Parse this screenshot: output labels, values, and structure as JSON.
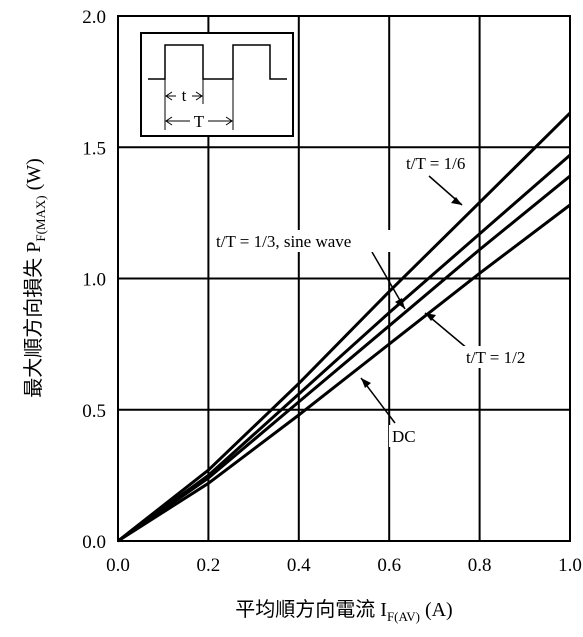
{
  "chart_data": {
    "type": "line",
    "xlabel": "平均順方向電流 I",
    "xlabel_sub": "F(AV)",
    "xlabel_unit": "(A)",
    "ylabel": "最大順方向損失 P",
    "ylabel_sub": "F(MAX)",
    "ylabel_unit": "(W)",
    "xlim": [
      0.0,
      1.0
    ],
    "ylim": [
      0.0,
      2.0
    ],
    "x_ticks": [
      "0.0",
      "0.2",
      "0.4",
      "0.6",
      "0.8",
      "1.0"
    ],
    "y_ticks": [
      "0.0",
      "0.5",
      "1.0",
      "1.5",
      "2.0"
    ],
    "grid": true,
    "x": [
      0.0,
      0.2,
      0.4,
      0.6,
      0.8,
      1.0
    ],
    "series": [
      {
        "values": [
          0.0,
          0.27,
          0.6,
          0.95,
          1.29,
          1.63
        ]
      },
      {
        "values": [
          0.0,
          0.25,
          0.56,
          0.87,
          1.17,
          1.47
        ]
      },
      {
        "values": [
          0.0,
          0.24,
          0.53,
          0.82,
          1.11,
          1.39
        ]
      },
      {
        "values": [
          0.0,
          0.22,
          0.48,
          0.75,
          1.02,
          1.28
        ]
      }
    ],
    "annotations": [
      {
        "text": "t/T = 1/6",
        "target_x": 0.66,
        "target_y": 1.15
      },
      {
        "text": "t/T = 1/3, sine wave",
        "target_x": 0.64,
        "target_y": 0.86
      },
      {
        "text": "t/T = 1/2",
        "target_x": 0.69,
        "target_y": 0.88
      },
      {
        "text": "DC",
        "target_x": 0.55,
        "target_y": 0.63
      }
    ],
    "inset": {
      "labels": [
        "t",
        "T"
      ]
    }
  }
}
